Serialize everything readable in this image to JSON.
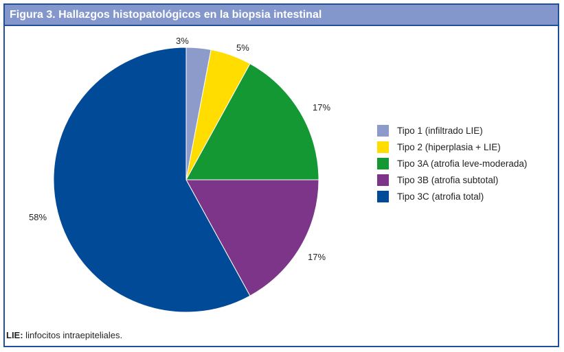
{
  "figure": {
    "title": "Figura 3. Hallazgos histopatológicos en la biopsia intestinal",
    "footnote_term": "LIE:",
    "footnote_text": " linfocitos intraepiteliales."
  },
  "colors": {
    "header_bg": "#8497cc",
    "border": "#1f4e9a"
  },
  "chart_data": {
    "type": "pie",
    "title": "Figura 3. Hallazgos histopatológicos en la biopsia intestinal",
    "categories": [
      "Tipo 1 (infiltrado LIE)",
      "Tipo 2 (hiperplasia + LIE)",
      "Tipo 3A (atrofia leve-moderada)",
      "Tipo 3B (atrofia subtotal)",
      "Tipo 3C (atrofia total)"
    ],
    "values": [
      3,
      5,
      17,
      17,
      58
    ],
    "labels": [
      "3%",
      "5%",
      "17%",
      "17%",
      "58%"
    ],
    "colors": [
      "#8d9bcb",
      "#ffdd00",
      "#139834",
      "#7d3589",
      "#004a97"
    ],
    "legend_position": "right",
    "start_angle": "12 o'clock, clockwise"
  }
}
